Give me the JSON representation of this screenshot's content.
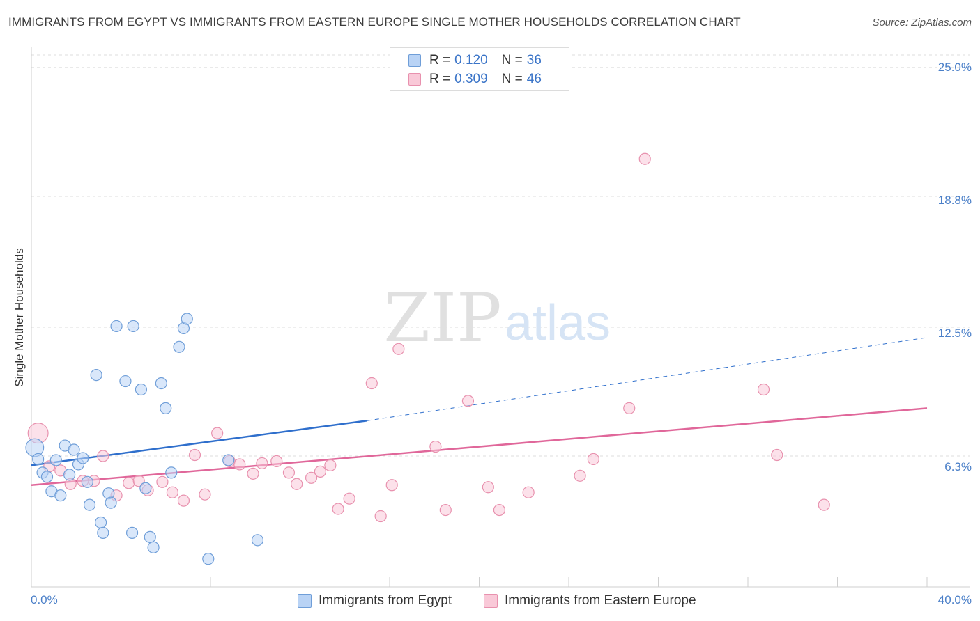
{
  "header": {
    "title": "IMMIGRANTS FROM EGYPT VS IMMIGRANTS FROM EASTERN EUROPE SINGLE MOTHER HOUSEHOLDS CORRELATION CHART",
    "source": "Source: ZipAtlas.com"
  },
  "watermark": {
    "zip": "ZIP",
    "atlas": "atlas"
  },
  "legend": {
    "rows": [
      {
        "r_label": "R = ",
        "r_value": "0.120",
        "n_label": "N = ",
        "n_value": "36"
      },
      {
        "r_label": "R = ",
        "r_value": "0.309",
        "n_label": "N = ",
        "n_value": "46"
      }
    ]
  },
  "bottom_legend": {
    "egypt": "Immigrants from Egypt",
    "eastern_europe": "Immigrants from Eastern Europe"
  },
  "colors": {
    "egypt_fill": "#b9d3f5",
    "egypt_stroke": "#6f9ed8",
    "egypt_line": "#2f6fcc",
    "ee_fill": "#f9c9d8",
    "ee_stroke": "#e891ae",
    "ee_line": "#e0679a",
    "tick_text": "#4a7fc8",
    "grid": "#dcdcdc"
  },
  "chart_data": {
    "type": "scatter",
    "title": "IMMIGRANTS FROM EGYPT VS IMMIGRANTS FROM EASTERN EUROPE SINGLE MOTHER HOUSEHOLDS CORRELATION CHART",
    "xlabel": "",
    "ylabel": "Single Mother Households",
    "xlim": [
      0,
      40
    ],
    "ylim": [
      0,
      25.6
    ],
    "y_ticks": [
      "25.0%",
      "18.8%",
      "12.5%",
      "6.3%"
    ],
    "y_tick_values": [
      25.0,
      18.8,
      12.5,
      6.3
    ],
    "x_tick_labels": [
      "0.0%",
      "40.0%"
    ],
    "x_tick_values": [
      0,
      40
    ],
    "grid": true,
    "legend_position": "top-center",
    "series": [
      {
        "name": "Immigrants from Egypt",
        "r": 0.12,
        "n": 36,
        "trend": {
          "x0": 0,
          "y0": 5.85,
          "x1": 15,
          "y1": 8.0,
          "x_end": 40,
          "y_end": 12.0
        },
        "points": [
          [
            0.15,
            6.7,
            16
          ],
          [
            0.3,
            6.15,
            10
          ],
          [
            0.5,
            5.5,
            10
          ],
          [
            0.7,
            5.3,
            10
          ],
          [
            0.9,
            4.6,
            10
          ],
          [
            1.1,
            6.1,
            10
          ],
          [
            1.3,
            4.4,
            10
          ],
          [
            1.5,
            6.8,
            10
          ],
          [
            1.7,
            5.4,
            10
          ],
          [
            1.9,
            6.6,
            10
          ],
          [
            2.1,
            5.9,
            10
          ],
          [
            2.3,
            6.2,
            10
          ],
          [
            2.5,
            5.05,
            10
          ],
          [
            2.6,
            3.95,
            10
          ],
          [
            2.9,
            10.2,
            10
          ],
          [
            3.1,
            3.1,
            10
          ],
          [
            3.2,
            2.6,
            10
          ],
          [
            3.45,
            4.5,
            10
          ],
          [
            3.55,
            4.05,
            10
          ],
          [
            3.8,
            12.55,
            10
          ],
          [
            4.2,
            9.9,
            10
          ],
          [
            4.5,
            2.6,
            10
          ],
          [
            4.55,
            12.55,
            10
          ],
          [
            4.9,
            9.5,
            10
          ],
          [
            5.1,
            4.75,
            10
          ],
          [
            5.3,
            2.4,
            10
          ],
          [
            5.45,
            1.9,
            10
          ],
          [
            5.8,
            9.8,
            10
          ],
          [
            6.0,
            8.6,
            10
          ],
          [
            6.25,
            5.5,
            10
          ],
          [
            6.6,
            11.55,
            10
          ],
          [
            6.8,
            12.45,
            10
          ],
          [
            6.95,
            12.9,
            10
          ],
          [
            7.9,
            1.35,
            10
          ],
          [
            8.8,
            6.1,
            10
          ],
          [
            10.1,
            2.25,
            10
          ]
        ]
      },
      {
        "name": "Immigrants from Eastern Europe",
        "r": 0.309,
        "n": 46,
        "trend": {
          "x0": 0,
          "y0": 4.9,
          "x1": 40,
          "y1": 8.6
        },
        "points": [
          [
            0.3,
            7.4,
            18
          ],
          [
            0.8,
            5.8,
            10
          ],
          [
            1.3,
            5.6,
            10
          ],
          [
            1.75,
            4.95,
            10
          ],
          [
            2.3,
            5.1,
            10
          ],
          [
            2.8,
            5.1,
            10
          ],
          [
            3.2,
            6.3,
            10
          ],
          [
            3.8,
            4.4,
            10
          ],
          [
            4.35,
            5.0,
            10
          ],
          [
            4.8,
            5.1,
            10
          ],
          [
            5.2,
            4.65,
            10
          ],
          [
            5.85,
            5.05,
            10
          ],
          [
            6.3,
            4.55,
            10
          ],
          [
            6.8,
            4.15,
            10
          ],
          [
            7.3,
            6.35,
            10
          ],
          [
            7.75,
            4.45,
            10
          ],
          [
            8.3,
            7.4,
            10
          ],
          [
            8.85,
            6.05,
            10
          ],
          [
            9.3,
            5.9,
            10
          ],
          [
            9.9,
            5.45,
            10
          ],
          [
            10.3,
            5.95,
            10
          ],
          [
            10.95,
            6.05,
            10
          ],
          [
            11.5,
            5.5,
            10
          ],
          [
            11.85,
            4.95,
            10
          ],
          [
            12.5,
            5.25,
            10
          ],
          [
            12.9,
            5.55,
            10
          ],
          [
            13.35,
            5.85,
            10
          ],
          [
            13.7,
            3.75,
            10
          ],
          [
            14.2,
            4.25,
            10
          ],
          [
            15.2,
            9.8,
            10
          ],
          [
            15.6,
            3.4,
            10
          ],
          [
            16.1,
            4.9,
            10
          ],
          [
            16.4,
            11.45,
            10
          ],
          [
            18.05,
            6.75,
            10
          ],
          [
            18.5,
            3.7,
            10
          ],
          [
            19.5,
            8.95,
            10
          ],
          [
            20.4,
            4.8,
            10
          ],
          [
            20.9,
            3.7,
            10
          ],
          [
            22.2,
            4.55,
            10
          ],
          [
            24.5,
            5.35,
            10
          ],
          [
            25.1,
            6.15,
            10
          ],
          [
            26.7,
            8.6,
            10
          ],
          [
            27.4,
            20.6,
            10
          ],
          [
            32.7,
            9.5,
            10
          ],
          [
            33.3,
            6.35,
            10
          ],
          [
            35.4,
            3.95,
            10
          ]
        ]
      }
    ]
  }
}
